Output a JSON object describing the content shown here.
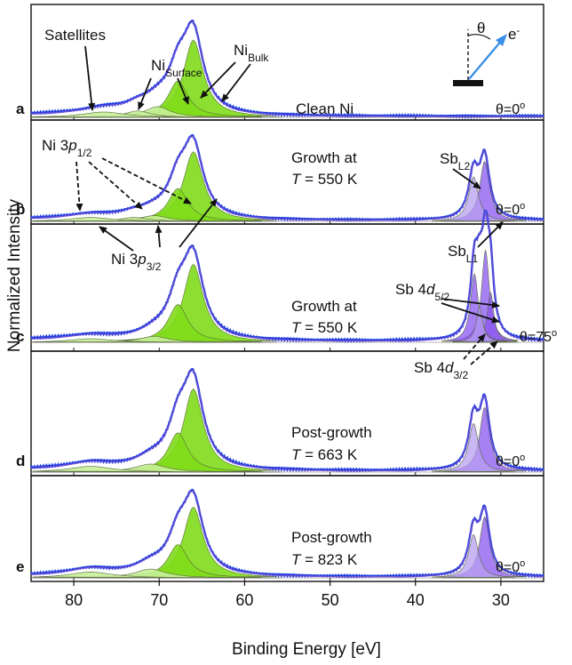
{
  "chart_data": {
    "type": "line",
    "xlabel": "Binding Energy [eV]",
    "ylabel": "Normalized Intensity",
    "xlim": [
      85,
      25
    ],
    "xticks": [
      80,
      70,
      60,
      50,
      40,
      30
    ],
    "x_reversed": true,
    "inset": {
      "theta": "θ",
      "electron": "e-"
    },
    "panels": [
      {
        "letter": "a",
        "label_line1": "Clean Ni",
        "label_line2": "",
        "angle": "θ=0o",
        "annotations": [
          "Satellites",
          "NiSurface",
          "NiBulk"
        ],
        "peaks": [
          {
            "species": "Ni 3p3/2 bulk",
            "x": 66.0,
            "height": 0.72,
            "width": 1.4
          },
          {
            "species": "Ni 3p1/2 bulk",
            "x": 67.8,
            "height": 0.34,
            "width": 1.4
          },
          {
            "species": "Ni surface 3p3/2",
            "x": 70.2,
            "height": 0.1,
            "width": 1.8
          },
          {
            "species": "Ni surface 3p1/2",
            "x": 72.5,
            "height": 0.06,
            "width": 1.8
          },
          {
            "species": "Satellite",
            "x": 76.5,
            "height": 0.05,
            "width": 3.0
          }
        ]
      },
      {
        "letter": "b",
        "label_line1": "Growth at",
        "label_line2": "T = 550 K",
        "angle": "θ=0o",
        "annotations": [
          "Ni 3p1/2",
          "Ni 3p3/2",
          "SbL2",
          "SbL1"
        ],
        "peaks": [
          {
            "species": "Ni 3p3/2 bulk",
            "x": 66.0,
            "height": 0.72,
            "width": 1.4
          },
          {
            "species": "Ni 3p1/2 bulk",
            "x": 67.8,
            "height": 0.34,
            "width": 1.4
          },
          {
            "species": "Ni surface 3p3/2",
            "x": 70.6,
            "height": 0.06,
            "width": 2.0
          },
          {
            "species": "Ni surface 3p1/2",
            "x": 73.0,
            "height": 0.04,
            "width": 2.0
          },
          {
            "species": "Satellite",
            "x": 78.0,
            "height": 0.04,
            "width": 3.0
          },
          {
            "species": "Sb L1",
            "x": 31.9,
            "height": 0.62,
            "width": 0.7
          },
          {
            "species": "Sb L2",
            "x": 33.2,
            "height": 0.46,
            "width": 0.7
          }
        ]
      },
      {
        "letter": "c",
        "label_line1": "Growth at",
        "label_line2": "T = 550 K",
        "angle": "θ=75o",
        "annotations": [
          "Sb 4d5/2",
          "Sb 4d3/2"
        ],
        "peaks": [
          {
            "species": "Ni 3p3/2 bulk",
            "x": 66.0,
            "height": 0.66,
            "width": 1.4
          },
          {
            "species": "Ni 3p1/2 bulk",
            "x": 67.8,
            "height": 0.32,
            "width": 1.4
          },
          {
            "species": "Ni surface 3p3/2",
            "x": 70.6,
            "height": 0.05,
            "width": 2.0
          },
          {
            "species": "Satellite",
            "x": 78.0,
            "height": 0.03,
            "width": 3.0
          },
          {
            "species": "Sb 4d5/2 (L1)",
            "x": 31.8,
            "height": 0.78,
            "width": 0.55
          },
          {
            "species": "Sb 4d5/2 (L2)",
            "x": 31.2,
            "height": 0.42,
            "width": 0.45
          },
          {
            "species": "Sb 4d3/2 (L1)",
            "x": 33.1,
            "height": 0.58,
            "width": 0.55
          },
          {
            "species": "Sb 4d3/2 (L2)",
            "x": 32.5,
            "height": 0.3,
            "width": 0.45
          }
        ]
      },
      {
        "letter": "d",
        "label_line1": "Post-growth",
        "label_line2": "T = 663 K",
        "angle": "θ=0o",
        "annotations": [],
        "peaks": [
          {
            "species": "Ni 3p3/2 bulk",
            "x": 66.0,
            "height": 0.72,
            "width": 1.4
          },
          {
            "species": "Ni 3p1/2 bulk",
            "x": 67.8,
            "height": 0.34,
            "width": 1.4
          },
          {
            "species": "Ni surface 3p3/2",
            "x": 71.0,
            "height": 0.07,
            "width": 2.2
          },
          {
            "species": "Satellite",
            "x": 78.0,
            "height": 0.05,
            "width": 3.0
          },
          {
            "species": "Sb L1",
            "x": 31.9,
            "height": 0.56,
            "width": 0.7
          },
          {
            "species": "Sb L2",
            "x": 33.2,
            "height": 0.42,
            "width": 0.7
          }
        ]
      },
      {
        "letter": "e",
        "label_line1": "Post-growth",
        "label_line2": "T = 823 K",
        "angle": "θ=0o",
        "annotations": [],
        "peaks": [
          {
            "species": "Ni 3p3/2 bulk",
            "x": 66.0,
            "height": 0.72,
            "width": 1.4
          },
          {
            "species": "Ni 3p1/2 bulk",
            "x": 67.8,
            "height": 0.34,
            "width": 1.4
          },
          {
            "species": "Ni surface 3p3/2",
            "x": 71.0,
            "height": 0.09,
            "width": 2.2
          },
          {
            "species": "Satellite",
            "x": 78.0,
            "height": 0.06,
            "width": 3.0
          },
          {
            "species": "Sb L1",
            "x": 31.9,
            "height": 0.62,
            "width": 0.7
          },
          {
            "species": "Sb L2",
            "x": 33.2,
            "height": 0.44,
            "width": 0.7
          }
        ]
      }
    ]
  },
  "colors": {
    "ni_fill": "#7fdc1a",
    "ni_fill_light": "#c6ef9a",
    "sb_fill": "#b79ff0",
    "sb_fill_dark": "#8a55f0",
    "data": "#1f3fe0",
    "fit": "#7a4fcf",
    "arrow": "#3b8ee6"
  }
}
